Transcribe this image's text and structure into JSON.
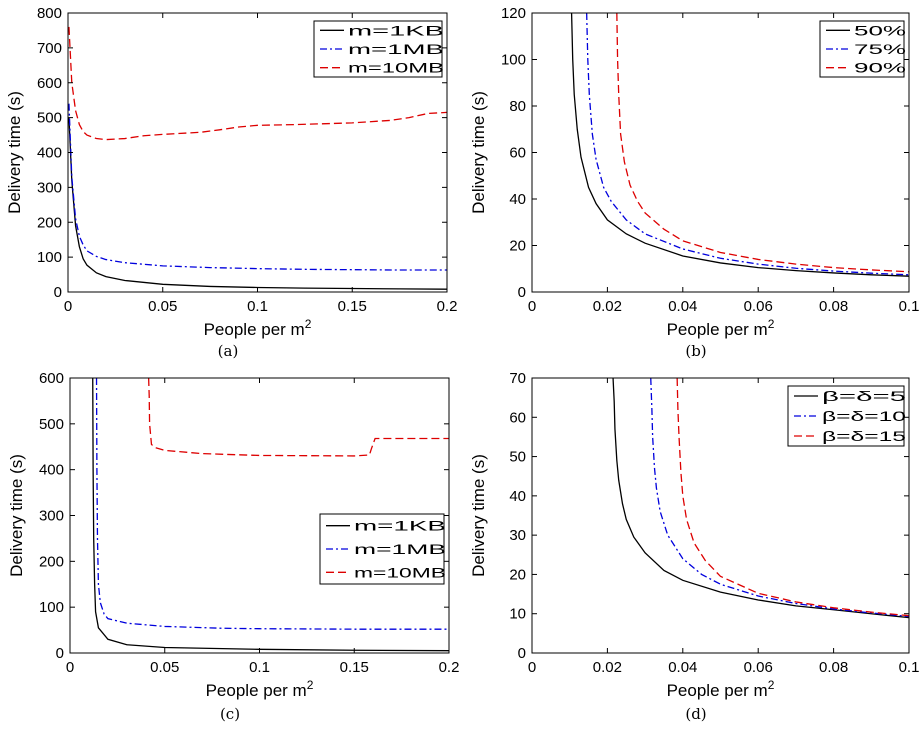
{
  "chart_data": [
    {
      "id": "a",
      "type": "line",
      "caption": "(a)",
      "xlabel": "People per m",
      "xlabel_sup": "2",
      "ylabel": "Delivery time (s)",
      "xlim": [
        0,
        0.2
      ],
      "ylim": [
        0,
        800
      ],
      "xticks": [
        0,
        0.05,
        0.1,
        0.15,
        0.2
      ],
      "xtick_labels": [
        "0",
        "0.05",
        "0.1",
        "0.15",
        "0.2"
      ],
      "yticks": [
        0,
        100,
        200,
        300,
        400,
        500,
        600,
        700,
        800
      ],
      "ytick_labels": [
        "0",
        "100",
        "200",
        "300",
        "400",
        "500",
        "600",
        "700",
        "800"
      ],
      "grid": false,
      "legend_position": "top-right",
      "series": [
        {
          "name": "m=1KB",
          "color": "#000000",
          "dash": "solid",
          "x": [
            0.0005,
            0.002,
            0.004,
            0.006,
            0.008,
            0.01,
            0.015,
            0.02,
            0.03,
            0.05,
            0.075,
            0.1,
            0.125,
            0.15,
            0.175,
            0.2
          ],
          "y": [
            500,
            320,
            190,
            130,
            95,
            77,
            55,
            44,
            33,
            22,
            16,
            13,
            11,
            10,
            9,
            8
          ]
        },
        {
          "name": "m=1MB",
          "color": "#0000dd",
          "dash": "dashdot",
          "x": [
            0.0005,
            0.002,
            0.004,
            0.006,
            0.008,
            0.01,
            0.015,
            0.02,
            0.03,
            0.05,
            0.075,
            0.1,
            0.125,
            0.15,
            0.175,
            0.2
          ],
          "y": [
            540,
            330,
            210,
            160,
            135,
            118,
            102,
            93,
            84,
            75,
            70,
            67,
            65,
            64,
            63,
            63
          ]
        },
        {
          "name": "m=10MB",
          "color": "#dd0000",
          "dash": "dashed",
          "x": [
            0.0005,
            0.002,
            0.004,
            0.006,
            0.008,
            0.01,
            0.015,
            0.02,
            0.03,
            0.04,
            0.05,
            0.07,
            0.08,
            0.09,
            0.1,
            0.12,
            0.15,
            0.17,
            0.18,
            0.19,
            0.2
          ],
          "y": [
            760,
            600,
            520,
            480,
            460,
            450,
            440,
            437,
            440,
            448,
            452,
            458,
            465,
            473,
            478,
            480,
            485,
            492,
            500,
            512,
            515
          ]
        }
      ]
    },
    {
      "id": "b",
      "type": "line",
      "caption": "(b)",
      "xlabel": "People per m",
      "xlabel_sup": "2",
      "ylabel": "Delivery time (s)",
      "xlim": [
        0,
        0.1
      ],
      "ylim": [
        0,
        120
      ],
      "xticks": [
        0,
        0.02,
        0.04,
        0.06,
        0.08,
        0.1
      ],
      "xtick_labels": [
        "0",
        "0.02",
        "0.04",
        "0.06",
        "0.08",
        "0.1"
      ],
      "yticks": [
        0,
        20,
        40,
        60,
        80,
        100,
        120
      ],
      "ytick_labels": [
        "0",
        "20",
        "40",
        "60",
        "80",
        "100",
        "120"
      ],
      "grid": false,
      "legend_position": "top-right",
      "series": [
        {
          "name": "50%",
          "color": "#000000",
          "dash": "solid",
          "x": [
            0.0105,
            0.0108,
            0.0112,
            0.012,
            0.013,
            0.015,
            0.017,
            0.02,
            0.025,
            0.03,
            0.04,
            0.05,
            0.06,
            0.07,
            0.08,
            0.09,
            0.1
          ],
          "y": [
            120,
            100,
            85,
            70,
            58,
            45,
            38,
            31,
            25,
            21,
            15.5,
            12.5,
            10.5,
            9.2,
            8.2,
            7.4,
            6.8
          ]
        },
        {
          "name": "75%",
          "color": "#0000dd",
          "dash": "dashdot",
          "x": [
            0.0145,
            0.0148,
            0.0152,
            0.016,
            0.017,
            0.019,
            0.021,
            0.025,
            0.03,
            0.04,
            0.05,
            0.06,
            0.07,
            0.08,
            0.09,
            0.1
          ],
          "y": [
            120,
            100,
            85,
            68,
            57,
            45,
            39,
            31,
            25,
            18.5,
            14.5,
            12,
            10.2,
            9.0,
            8.1,
            7.4
          ]
        },
        {
          "name": "90%",
          "color": "#dd0000",
          "dash": "dashed",
          "x": [
            0.0225,
            0.0227,
            0.023,
            0.0235,
            0.0245,
            0.026,
            0.028,
            0.03,
            0.035,
            0.04,
            0.05,
            0.06,
            0.07,
            0.08,
            0.09,
            0.1
          ],
          "y": [
            120,
            100,
            85,
            68,
            56,
            46,
            39,
            34,
            27,
            22,
            17,
            14,
            12,
            10.5,
            9.5,
            8.7
          ]
        }
      ]
    },
    {
      "id": "c",
      "type": "line",
      "caption": "(c)",
      "xlabel": "People per m",
      "xlabel_sup": "2",
      "ylabel": "Delivery time (s)",
      "xlim": [
        0,
        0.2
      ],
      "ylim": [
        0,
        600
      ],
      "xticks": [
        0,
        0.05,
        0.1,
        0.15,
        0.2
      ],
      "xtick_labels": [
        "0",
        "0.05",
        "0.1",
        "0.15",
        "0.2"
      ],
      "yticks": [
        0,
        100,
        200,
        300,
        400,
        500,
        600
      ],
      "ytick_labels": [
        "0",
        "100",
        "200",
        "300",
        "400",
        "500",
        "600"
      ],
      "grid": false,
      "legend_position": "right",
      "series": [
        {
          "name": "m=1KB",
          "color": "#000000",
          "dash": "solid",
          "x": [
            0.012,
            0.0122,
            0.0125,
            0.013,
            0.0135,
            0.015,
            0.02,
            0.03,
            0.05,
            0.1,
            0.15,
            0.2
          ],
          "y": [
            600,
            400,
            250,
            150,
            90,
            55,
            30,
            18,
            12,
            8,
            6,
            5
          ]
        },
        {
          "name": "m=1MB",
          "color": "#0000dd",
          "dash": "dashdot",
          "x": [
            0.014,
            0.0142,
            0.0145,
            0.015,
            0.016,
            0.018,
            0.02,
            0.03,
            0.05,
            0.08,
            0.1,
            0.15,
            0.2
          ],
          "y": [
            600,
            400,
            250,
            150,
            110,
            85,
            75,
            65,
            58,
            54,
            53,
            52,
            52
          ]
        },
        {
          "name": "m=10MB",
          "color": "#dd0000",
          "dash": "dashed",
          "x": [
            0.0415,
            0.0418,
            0.042,
            0.043,
            0.045,
            0.05,
            0.07,
            0.1,
            0.15,
            0.158,
            0.159,
            0.161,
            0.17,
            0.2
          ],
          "y": [
            600,
            560,
            500,
            455,
            448,
            442,
            435,
            431,
            430,
            432,
            445,
            468,
            468,
            468
          ]
        }
      ]
    },
    {
      "id": "d",
      "type": "line",
      "caption": "(d)",
      "xlabel": "People per m",
      "xlabel_sup": "2",
      "ylabel": "Delivery time (s)",
      "xlim": [
        0,
        0.1
      ],
      "ylim": [
        0,
        70
      ],
      "xticks": [
        0,
        0.02,
        0.04,
        0.06,
        0.08,
        0.1
      ],
      "xtick_labels": [
        "0",
        "0.02",
        "0.04",
        "0.06",
        "0.08",
        "0.1"
      ],
      "yticks": [
        0,
        10,
        20,
        30,
        40,
        50,
        60,
        70
      ],
      "ytick_labels": [
        "0",
        "10",
        "20",
        "30",
        "40",
        "50",
        "60",
        "70"
      ],
      "grid": false,
      "legend_position": "top-right",
      "series": [
        {
          "name": "β=δ=5",
          "color": "#000000",
          "dash": "solid",
          "x": [
            0.0215,
            0.0218,
            0.022,
            0.0225,
            0.023,
            0.024,
            0.025,
            0.027,
            0.03,
            0.035,
            0.04,
            0.05,
            0.06,
            0.07,
            0.08,
            0.09,
            0.1
          ],
          "y": [
            70,
            64,
            57,
            49,
            44,
            38,
            34,
            29.5,
            25.5,
            21,
            18.5,
            15.5,
            13.5,
            12,
            11,
            10,
            9
          ]
        },
        {
          "name": "β=δ=10",
          "color": "#0000dd",
          "dash": "dashdot",
          "x": [
            0.0315,
            0.0318,
            0.032,
            0.0325,
            0.033,
            0.034,
            0.036,
            0.04,
            0.045,
            0.05,
            0.06,
            0.07,
            0.08,
            0.09,
            0.1
          ],
          "y": [
            70,
            62,
            55,
            47,
            42,
            36,
            30,
            24,
            20,
            17.5,
            14.5,
            12.6,
            11.2,
            10.2,
            9.3
          ]
        },
        {
          "name": "β=δ=15",
          "color": "#dd0000",
          "dash": "dashed",
          "x": [
            0.0385,
            0.0387,
            0.039,
            0.0395,
            0.04,
            0.041,
            0.043,
            0.046,
            0.05,
            0.06,
            0.07,
            0.08,
            0.09,
            0.1
          ],
          "y": [
            70,
            62,
            55,
            46,
            40,
            34,
            28,
            23.5,
            19.5,
            15.2,
            13,
            11.5,
            10.4,
            9.5
          ]
        }
      ]
    }
  ]
}
